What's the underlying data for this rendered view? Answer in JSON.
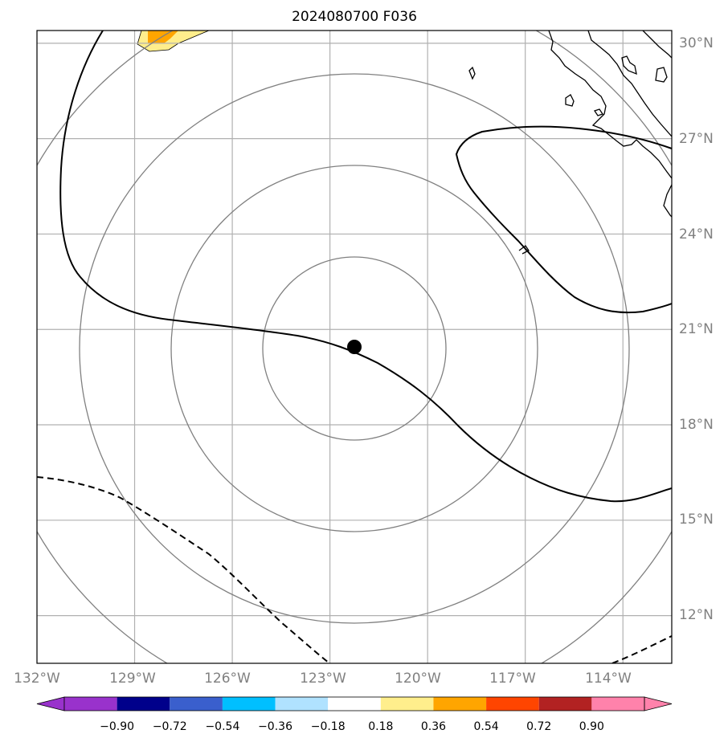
{
  "title": "2024080700 F036",
  "map": {
    "lon_range": [
      -132,
      -112.5
    ],
    "lat_range": [
      10.5,
      30.4
    ],
    "center": {
      "lon": -122.25,
      "lat": 20.4
    },
    "gridlines": true,
    "lon_ticks": [
      "132°W",
      "129°W",
      "126°W",
      "123°W",
      "120°W",
      "117°W",
      "114°W"
    ],
    "lat_ticks": [
      "30°N",
      "27°N",
      "24°N",
      "21°N",
      "18°N",
      "15°N",
      "12°N"
    ],
    "range_rings": 4,
    "colors": {
      "gridline": "#b0b0b0",
      "ring": "#808080",
      "contour": "#000000",
      "coast": "#000000",
      "tick_label": "#808080"
    }
  },
  "colorbar": {
    "levels": [
      "−0.90",
      "−0.72",
      "−0.54",
      "−0.36",
      "−0.18",
      "0.18",
      "0.36",
      "0.54",
      "0.72",
      "0.90"
    ],
    "colors": [
      "#9932cc",
      "#00008b",
      "#3a5fcd",
      "#00bfff",
      "#b0e2ff",
      "#ffffff",
      "#ffee8c",
      "#ffa500",
      "#ff4500",
      "#b22222",
      "#ff82ab"
    ],
    "extend": "both"
  },
  "legend_icons": [
    "storm-center-marker"
  ]
}
